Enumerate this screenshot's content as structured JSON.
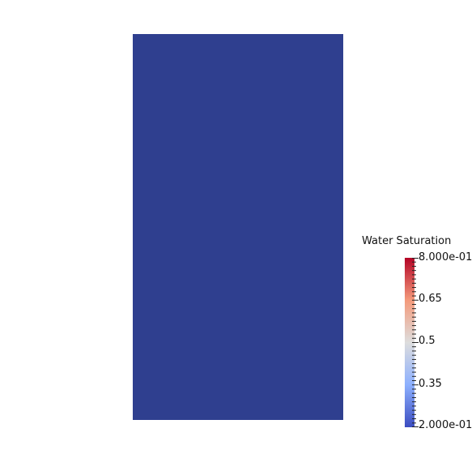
{
  "viewport": {
    "field_color": "#2f3f8f"
  },
  "legend": {
    "title": "Water Saturation",
    "labels": {
      "max": "8.000e-01",
      "l1": "0.65",
      "l2": "0.5",
      "l3": "0.35",
      "min": "2.000e-01"
    },
    "colormap": {
      "name": "Cool to Warm",
      "stops": [
        "#3b4cc0",
        "#8db0fe",
        "#dddddd",
        "#f49a7b",
        "#b40426"
      ]
    }
  }
}
